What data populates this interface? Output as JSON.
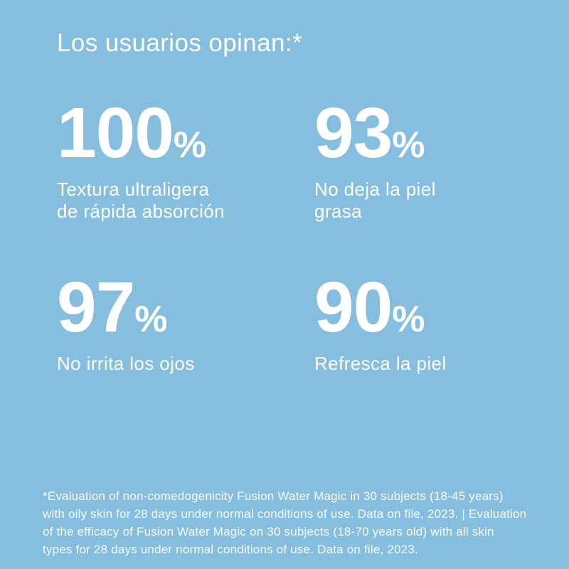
{
  "page": {
    "background_color": "#86bedf",
    "text_color": "#ffffff",
    "title": "Los usuarios opinan:*"
  },
  "stats": [
    {
      "value": "100",
      "unit": "%",
      "label": "Textura ultraligera\nde rápida absorción"
    },
    {
      "value": "93",
      "unit": "%",
      "label": "No deja la piel\ngrasa"
    },
    {
      "value": "97",
      "unit": "%",
      "label": "No irrita los ojos"
    },
    {
      "value": "90",
      "unit": "%",
      "label": "Refresca la piel"
    }
  ],
  "footnote": "*Evaluation of non-comedogenicity Fusion Water Magic in 30 subjects (18-45 years)\nwith oily skin for 28 days under normal conditions of use. Data on file, 2023. | Evaluation\nof the efficacy of Fusion Water Magic on 30 subjects (18-70 years old) with all skin\ntypes for 28 days under normal conditions of use. Data on file, 2023."
}
